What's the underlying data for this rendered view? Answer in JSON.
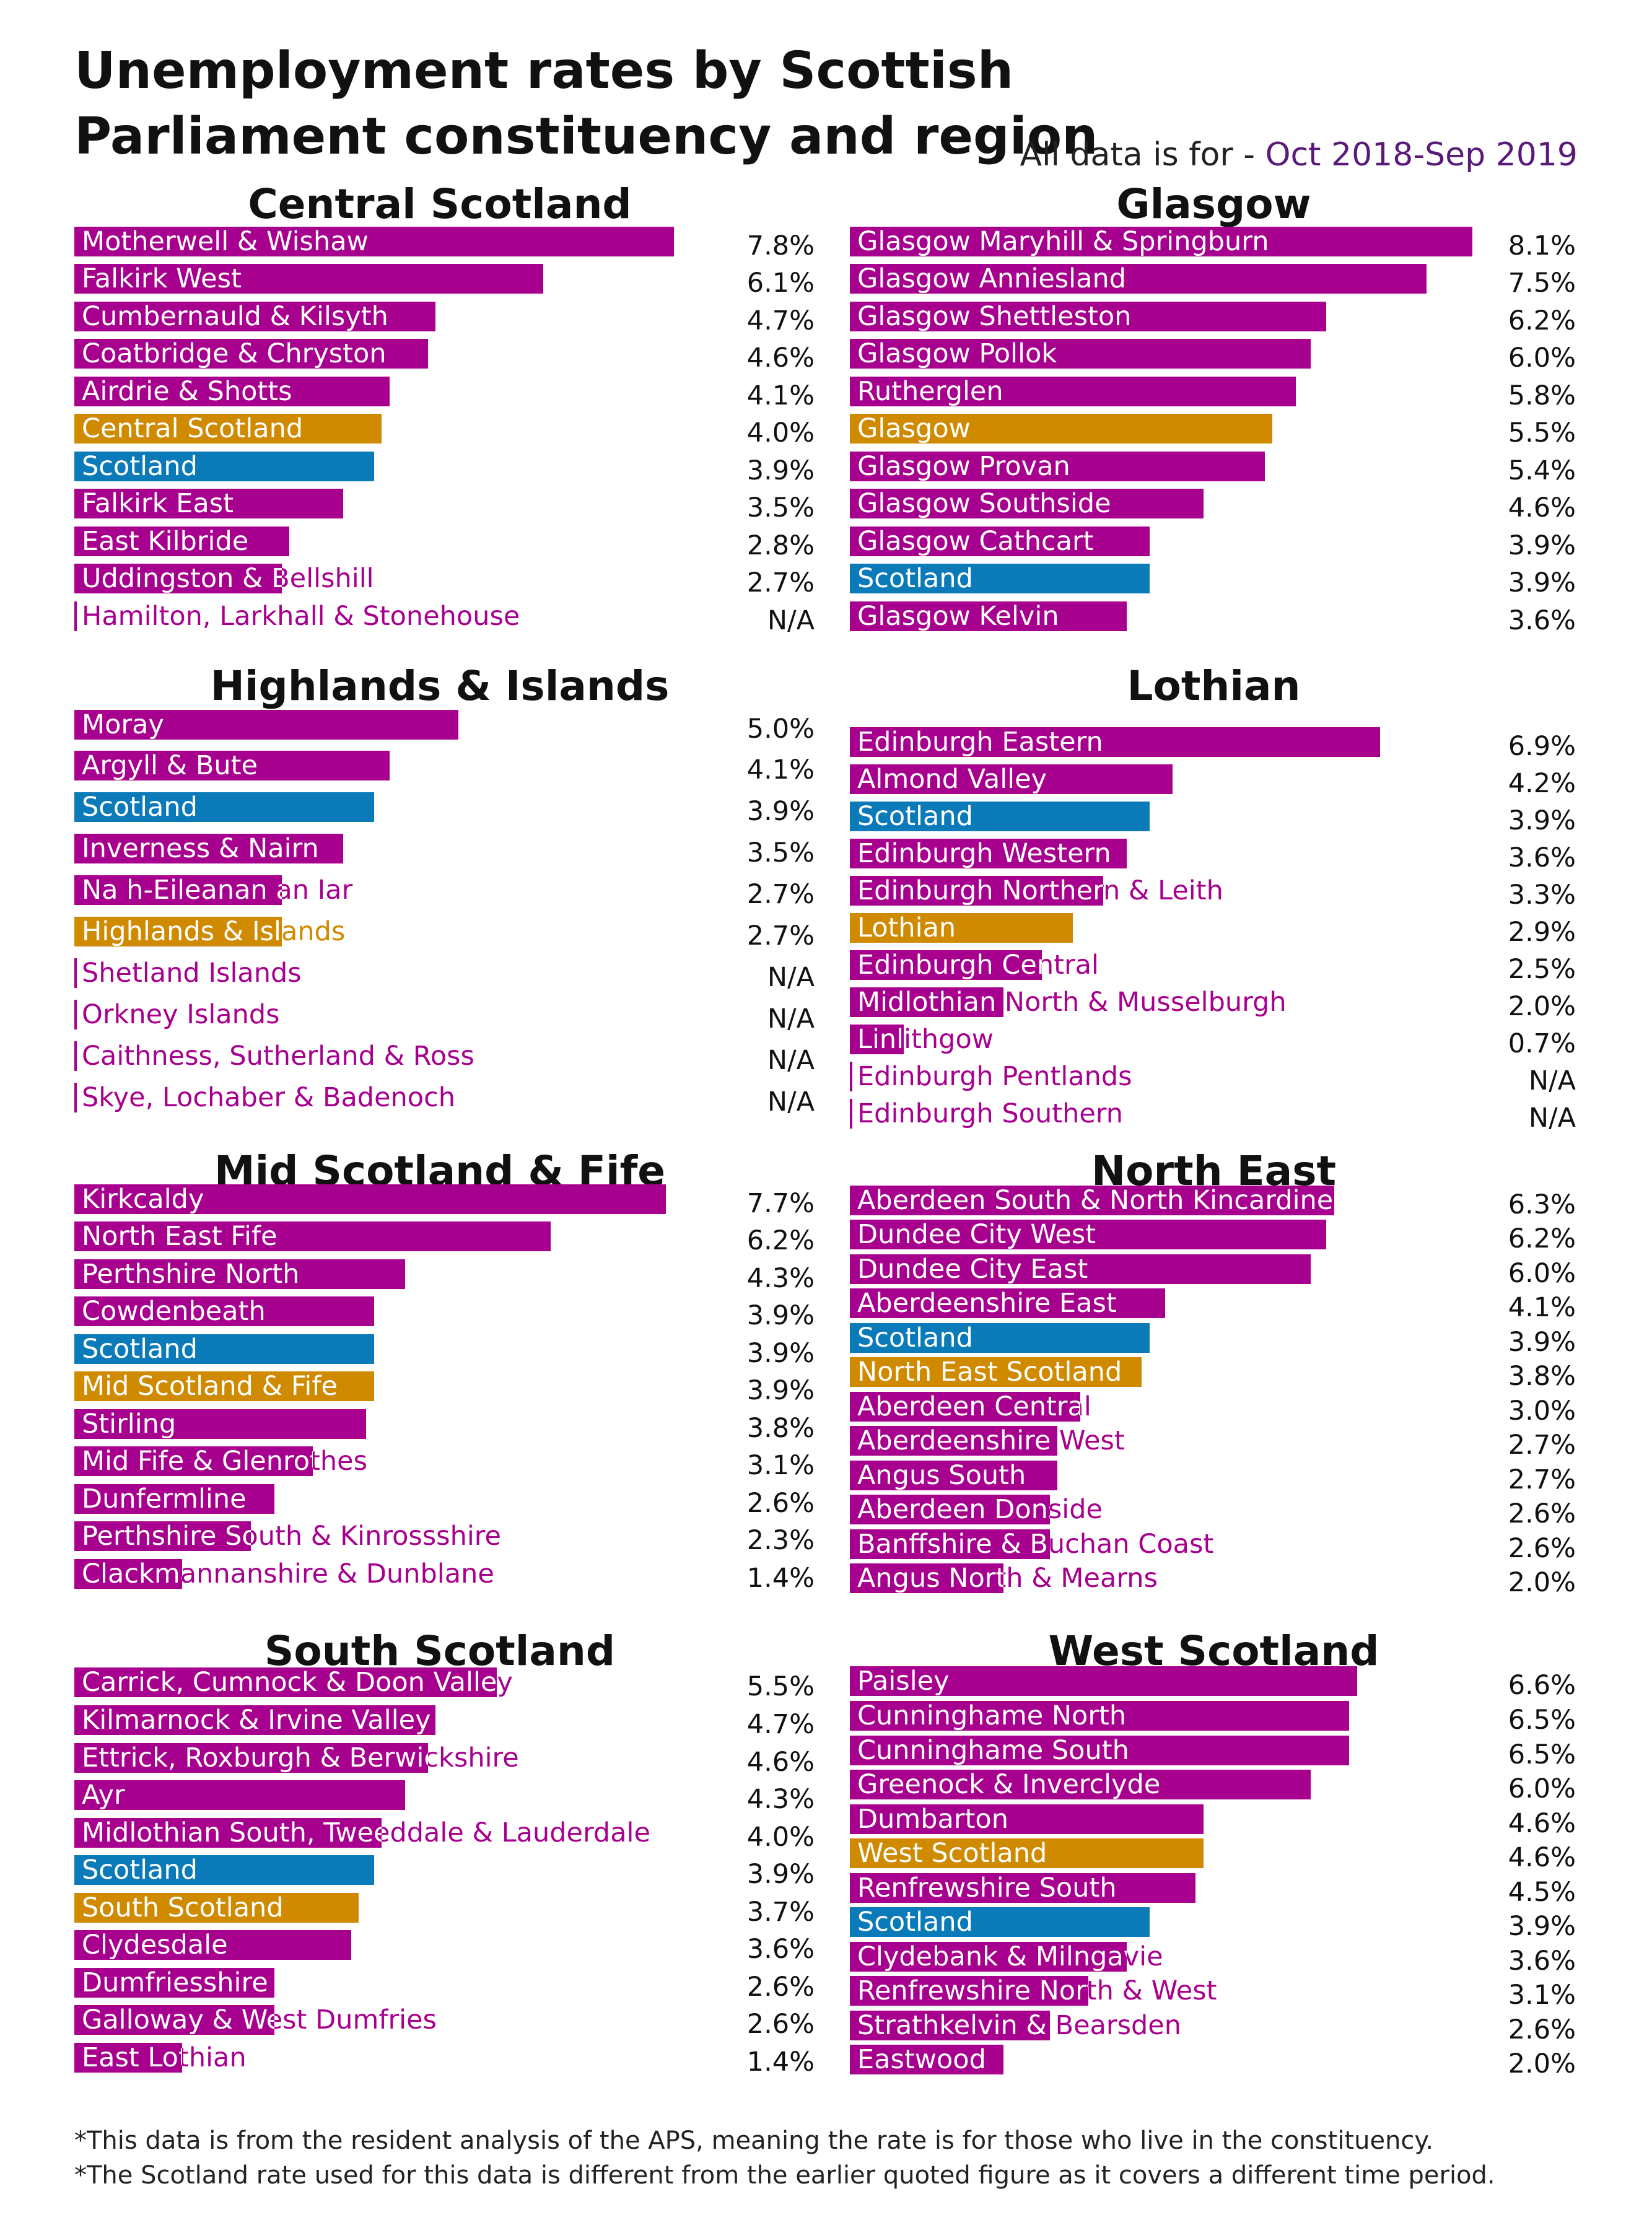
{
  "title": "Unemployment rates by Scottish Parliament constituency and region",
  "period_prefix": "All data is for - ",
  "period_value": "Oct 2018-Sep 2019",
  "colors": {
    "constituency": "#a8008e",
    "region": "#d08a00",
    "scotland": "#0a7bb8"
  },
  "footnotes": [
    "*This data is from the resident analysis of the APS, meaning the rate is for those who live in the constituency.",
    "*The Scotland rate used for this data is different from the earlier quoted figure as it covers a different time period."
  ],
  "chart_data": [
    {
      "type": "bar",
      "orientation": "horizontal",
      "title": "Central Scotland",
      "xlim": [
        0,
        8.1
      ],
      "categories": [
        "Motherwell & Wishaw",
        "Falkirk West",
        "Cumbernauld & Kilsyth",
        "Coatbridge & Chryston",
        "Airdrie & Shotts",
        "Central Scotland",
        "Scotland",
        "Falkirk East",
        "East Kilbride",
        "Uddingston & Bellshill",
        "Hamilton, Larkhall & Stonehouse"
      ],
      "values": [
        7.8,
        6.1,
        4.7,
        4.6,
        4.1,
        4.0,
        3.9,
        3.5,
        2.8,
        2.7,
        null
      ],
      "value_labels": [
        "7.8%",
        "6.1%",
        "4.7%",
        "4.6%",
        "4.1%",
        "4.0%",
        "3.9%",
        "3.5%",
        "2.8%",
        "2.7%",
        "N/A"
      ],
      "kinds": [
        "c",
        "c",
        "c",
        "c",
        "c",
        "r",
        "s",
        "c",
        "c",
        "c",
        "c"
      ]
    },
    {
      "type": "bar",
      "orientation": "horizontal",
      "title": "Glasgow",
      "xlim": [
        0,
        8.1
      ],
      "categories": [
        "Glasgow Maryhill & Springburn",
        "Glasgow Anniesland",
        "Glasgow Shettleston",
        "Glasgow Pollok",
        "Rutherglen",
        "Glasgow",
        "Glasgow Provan",
        "Glasgow Southside",
        "Glasgow Cathcart",
        "Scotland",
        "Glasgow Kelvin"
      ],
      "values": [
        8.1,
        7.5,
        6.2,
        6.0,
        5.8,
        5.5,
        5.4,
        4.6,
        3.9,
        3.9,
        3.6
      ],
      "value_labels": [
        "8.1%",
        "7.5%",
        "6.2%",
        "6.0%",
        "5.8%",
        "5.5%",
        "5.4%",
        "4.6%",
        "3.9%",
        "3.9%",
        "3.6%"
      ],
      "kinds": [
        "c",
        "c",
        "c",
        "c",
        "c",
        "r",
        "c",
        "c",
        "c",
        "s",
        "c"
      ]
    },
    {
      "type": "bar",
      "orientation": "horizontal",
      "title": "Highlands & Islands",
      "xlim": [
        0,
        8.1
      ],
      "categories": [
        "Moray",
        "Argyll & Bute",
        "Scotland",
        "Inverness & Nairn",
        "Na h-Eileanan an Iar",
        "Highlands & Islands",
        "Shetland Islands",
        "Orkney Islands",
        "Caithness, Sutherland & Ross",
        "Skye, Lochaber & Badenoch"
      ],
      "values": [
        5.0,
        4.1,
        3.9,
        3.5,
        2.7,
        2.7,
        null,
        null,
        null,
        null
      ],
      "value_labels": [
        "5.0%",
        "4.1%",
        "3.9%",
        "3.5%",
        "2.7%",
        "2.7%",
        "N/A",
        "N/A",
        "N/A",
        "N/A"
      ],
      "kinds": [
        "c",
        "c",
        "s",
        "c",
        "c",
        "r",
        "c",
        "c",
        "c",
        "c"
      ]
    },
    {
      "type": "bar",
      "orientation": "horizontal",
      "title": "Lothian",
      "xlim": [
        0,
        8.1
      ],
      "categories": [
        "Edinburgh Eastern",
        "Almond Valley",
        "Scotland",
        "Edinburgh Western",
        "Edinburgh Northern & Leith",
        "Lothian",
        "Edinburgh Central",
        "Midlothian North & Musselburgh",
        "Linlithgow",
        "Edinburgh Pentlands",
        "Edinburgh Southern"
      ],
      "values": [
        6.9,
        4.2,
        3.9,
        3.6,
        3.3,
        2.9,
        2.5,
        2.0,
        0.7,
        null,
        null
      ],
      "value_labels": [
        "6.9%",
        "4.2%",
        "3.9%",
        "3.6%",
        "3.3%",
        "2.9%",
        "2.5%",
        "2.0%",
        "0.7%",
        "N/A",
        "N/A"
      ],
      "kinds": [
        "c",
        "c",
        "s",
        "c",
        "c",
        "r",
        "c",
        "c",
        "c",
        "c",
        "c"
      ]
    },
    {
      "type": "bar",
      "orientation": "horizontal",
      "title": "Mid Scotland & Fife",
      "xlim": [
        0,
        8.1
      ],
      "categories": [
        "Kirkcaldy",
        "North East Fife",
        "Perthshire North",
        "Cowdenbeath",
        "Scotland",
        "Mid Scotland & Fife",
        "Stirling",
        "Mid Fife & Glenrothes",
        "Dunfermline",
        "Perthshire South & Kinrossshire",
        "Clackmannanshire & Dunblane"
      ],
      "values": [
        7.7,
        6.2,
        4.3,
        3.9,
        3.9,
        3.9,
        3.8,
        3.1,
        2.6,
        2.3,
        1.4
      ],
      "value_labels": [
        "7.7%",
        "6.2%",
        "4.3%",
        "3.9%",
        "3.9%",
        "3.9%",
        "3.8%",
        "3.1%",
        "2.6%",
        "2.3%",
        "1.4%"
      ],
      "kinds": [
        "c",
        "c",
        "c",
        "c",
        "s",
        "r",
        "c",
        "c",
        "c",
        "c",
        "c"
      ]
    },
    {
      "type": "bar",
      "orientation": "horizontal",
      "title": "North East",
      "xlim": [
        0,
        8.1
      ],
      "categories": [
        "Aberdeen South & North Kincardine",
        "Dundee City West",
        "Dundee City East",
        "Aberdeenshire East",
        "Scotland",
        "North East Scotland",
        "Aberdeen Central",
        "Aberdeenshire West",
        "Angus South",
        "Aberdeen Donside",
        "Banffshire & Buchan Coast",
        "Angus North & Mearns"
      ],
      "values": [
        6.3,
        6.2,
        6.0,
        4.1,
        3.9,
        3.8,
        3.0,
        2.7,
        2.7,
        2.6,
        2.6,
        2.0
      ],
      "value_labels": [
        "6.3%",
        "6.2%",
        "6.0%",
        "4.1%",
        "3.9%",
        "3.8%",
        "3.0%",
        "2.7%",
        "2.7%",
        "2.6%",
        "2.6%",
        "2.0%"
      ],
      "kinds": [
        "c",
        "c",
        "c",
        "c",
        "s",
        "r",
        "c",
        "c",
        "c",
        "c",
        "c",
        "c"
      ]
    },
    {
      "type": "bar",
      "orientation": "horizontal",
      "title": "South Scotland",
      "xlim": [
        0,
        8.1
      ],
      "categories": [
        "Carrick, Cumnock & Doon Valley",
        "Kilmarnock & Irvine Valley",
        "Ettrick, Roxburgh & Berwickshire",
        "Ayr",
        "Midlothian South, Tweeddale & Lauderdale",
        "Scotland",
        "South Scotland",
        "Clydesdale",
        "Dumfriesshire",
        "Galloway & West Dumfries",
        "East Lothian"
      ],
      "values": [
        5.5,
        4.7,
        4.6,
        4.3,
        4.0,
        3.9,
        3.7,
        3.6,
        2.6,
        2.6,
        1.4
      ],
      "value_labels": [
        "5.5%",
        "4.7%",
        "4.6%",
        "4.3%",
        "4.0%",
        "3.9%",
        "3.7%",
        "3.6%",
        "2.6%",
        "2.6%",
        "1.4%"
      ],
      "kinds": [
        "c",
        "c",
        "c",
        "c",
        "c",
        "s",
        "r",
        "c",
        "c",
        "c",
        "c"
      ]
    },
    {
      "type": "bar",
      "orientation": "horizontal",
      "title": "West Scotland",
      "xlim": [
        0,
        8.1
      ],
      "categories": [
        "Paisley",
        "Cunninghame North",
        "Cunninghame South",
        "Greenock & Inverclyde",
        "Dumbarton",
        "West Scotland",
        "Renfrewshire South",
        "Scotland",
        "Clydebank & Milngavie",
        "Renfrewshire North & West",
        "Strathkelvin & Bearsden",
        "Eastwood"
      ],
      "values": [
        6.6,
        6.5,
        6.5,
        6.0,
        4.6,
        4.6,
        4.5,
        3.9,
        3.6,
        3.1,
        2.6,
        2.0
      ],
      "value_labels": [
        "6.6%",
        "6.5%",
        "6.5%",
        "6.0%",
        "4.6%",
        "4.6%",
        "4.5%",
        "3.9%",
        "3.6%",
        "3.1%",
        "2.6%",
        "2.0%"
      ],
      "kinds": [
        "c",
        "c",
        "c",
        "c",
        "c",
        "r",
        "c",
        "s",
        "c",
        "c",
        "c",
        "c"
      ]
    }
  ]
}
